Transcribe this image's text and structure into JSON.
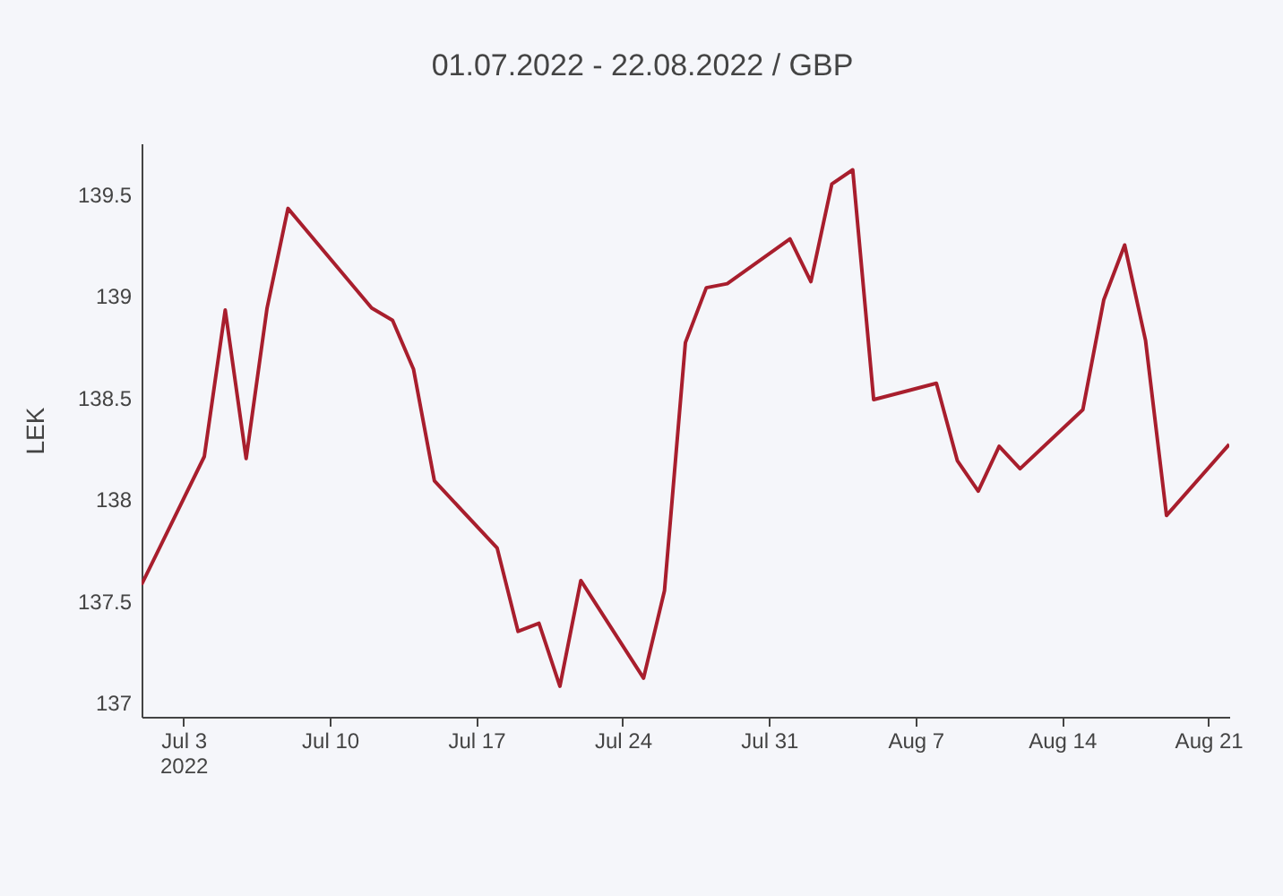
{
  "chart_data": {
    "type": "line",
    "title": "01.07.2022 - 22.08.2022 / GBP",
    "ylabel": "LEK",
    "x": [
      "2022-07-01",
      "2022-07-04",
      "2022-07-05",
      "2022-07-06",
      "2022-07-07",
      "2022-07-08",
      "2022-07-12",
      "2022-07-13",
      "2022-07-14",
      "2022-07-15",
      "2022-07-18",
      "2022-07-19",
      "2022-07-20",
      "2022-07-21",
      "2022-07-22",
      "2022-07-25",
      "2022-07-26",
      "2022-07-27",
      "2022-07-28",
      "2022-07-29",
      "2022-08-01",
      "2022-08-02",
      "2022-08-03",
      "2022-08-04",
      "2022-08-05",
      "2022-08-08",
      "2022-08-09",
      "2022-08-10",
      "2022-08-11",
      "2022-08-12",
      "2022-08-15",
      "2022-08-16",
      "2022-08-17",
      "2022-08-18",
      "2022-08-19",
      "2022-08-22"
    ],
    "series": [
      {
        "color": "#a81e2d",
        "values": [
          137.58,
          138.21,
          138.93,
          138.2,
          138.94,
          139.43,
          138.94,
          138.88,
          138.64,
          138.09,
          137.76,
          137.35,
          137.39,
          137.08,
          137.6,
          137.12,
          137.55,
          138.77,
          139.04,
          139.06,
          139.28,
          139.07,
          139.55,
          139.62,
          138.49,
          138.57,
          138.19,
          138.04,
          138.26,
          138.15,
          138.44,
          138.98,
          139.25,
          138.78,
          137.92,
          138.27
        ]
      }
    ],
    "xlim": [
      "2022-07-01",
      "2022-08-22"
    ],
    "xticks": [
      {
        "value": "2022-07-03",
        "label": "Jul 3\n2022"
      },
      {
        "value": "2022-07-10",
        "label": "Jul 10"
      },
      {
        "value": "2022-07-17",
        "label": "Jul 17"
      },
      {
        "value": "2022-07-24",
        "label": "Jul 24"
      },
      {
        "value": "2022-07-31",
        "label": "Jul 31"
      },
      {
        "value": "2022-08-07",
        "label": "Aug 7"
      },
      {
        "value": "2022-08-14",
        "label": "Aug 14"
      },
      {
        "value": "2022-08-21",
        "label": "Aug 21"
      }
    ],
    "ylim": [
      136.93,
      139.75
    ],
    "yticks": [
      137,
      137.5,
      138,
      138.5,
      139,
      139.5
    ],
    "grid": false,
    "marker": "none",
    "line_style": "solid"
  }
}
